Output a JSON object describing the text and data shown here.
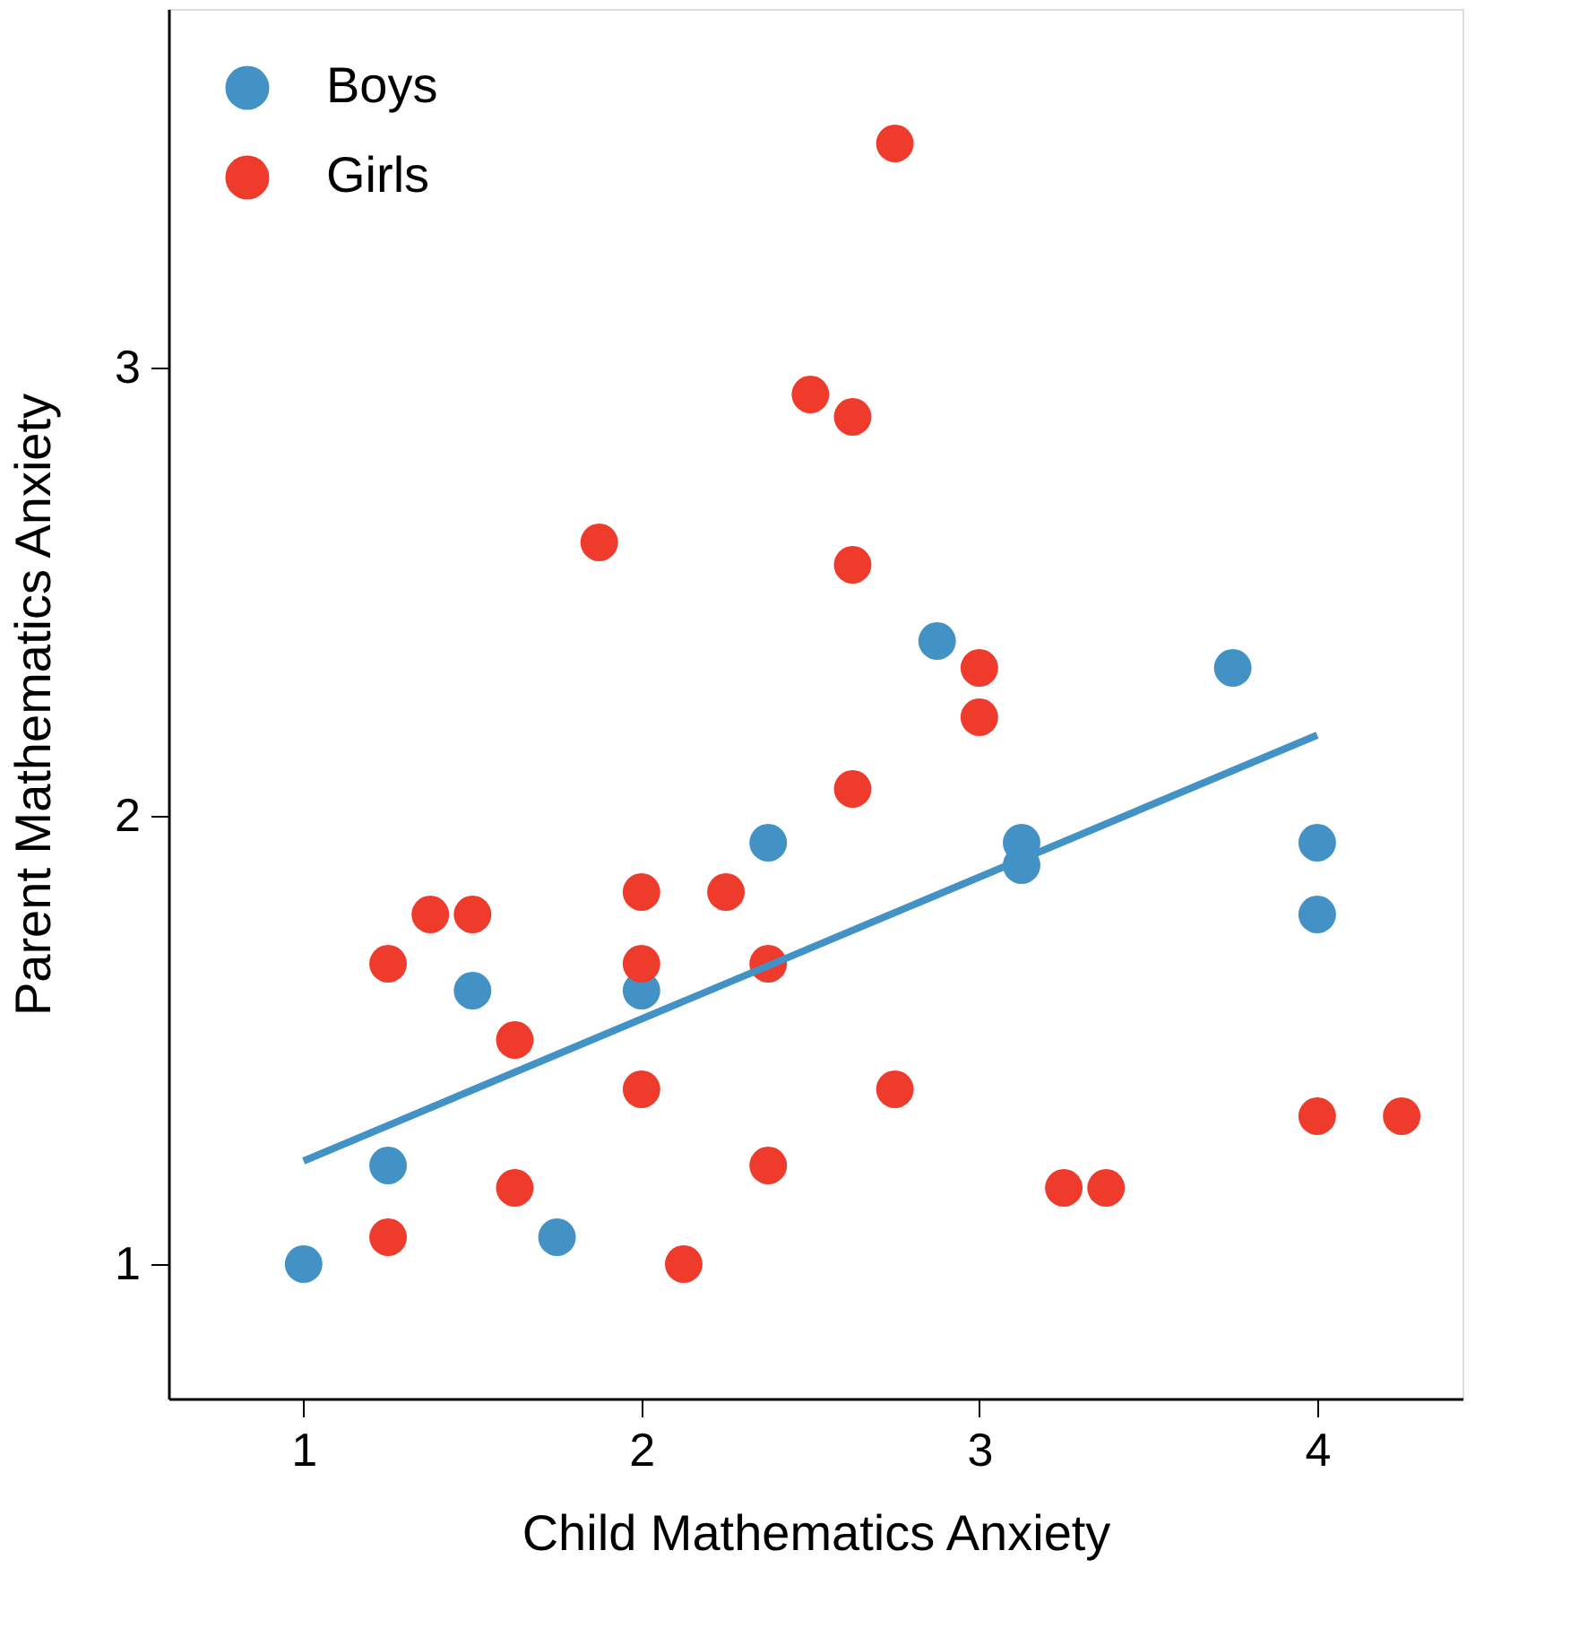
{
  "chart_data": {
    "type": "scatter",
    "xlabel": "Child Mathematics Anxiety",
    "ylabel": "Parent Mathematics Anxiety",
    "xlim": [
      0.6,
      4.43
    ],
    "ylim": [
      0.7,
      3.8
    ],
    "xticks": [
      1,
      2,
      3,
      4
    ],
    "yticks": [
      1,
      2,
      3
    ],
    "grid": false,
    "legend": "top left",
    "marker": "circle",
    "series": [
      {
        "name": "Boys",
        "color": "#4292c6",
        "x": [
          1,
          1.25,
          1.5,
          1.75,
          2,
          2.375,
          2.875,
          3.125,
          3.125,
          3.75,
          4,
          4
        ],
        "values": [
          1.0,
          1.22,
          1.61,
          1.06,
          1.61,
          1.94,
          2.39,
          1.94,
          1.89,
          2.33,
          1.94,
          1.78
        ]
      },
      {
        "name": "Girls",
        "color": "#ef3b2c",
        "x": [
          2.75,
          2.5,
          2.625,
          1.875,
          2.625,
          3,
          3,
          2.625,
          2,
          2.25,
          1.375,
          1.5,
          1.25,
          2,
          2.375,
          1.625,
          2,
          2.75,
          4,
          4.25,
          2.375,
          1.625,
          3.25,
          3.375,
          1.25,
          2.125
        ],
        "values": [
          3.5,
          2.94,
          2.89,
          2.61,
          2.56,
          2.33,
          2.22,
          2.06,
          1.83,
          1.83,
          1.78,
          1.78,
          1.67,
          1.67,
          1.67,
          1.5,
          1.39,
          1.39,
          1.33,
          1.33,
          1.22,
          1.17,
          1.17,
          1.17,
          1.06,
          1.0
        ]
      },
      {
        "type": "line",
        "color": "#4292c6",
        "line_style": "solid",
        "marker": "none",
        "x": [
          1,
          4
        ],
        "values": [
          1.23,
          2.18
        ]
      }
    ]
  }
}
